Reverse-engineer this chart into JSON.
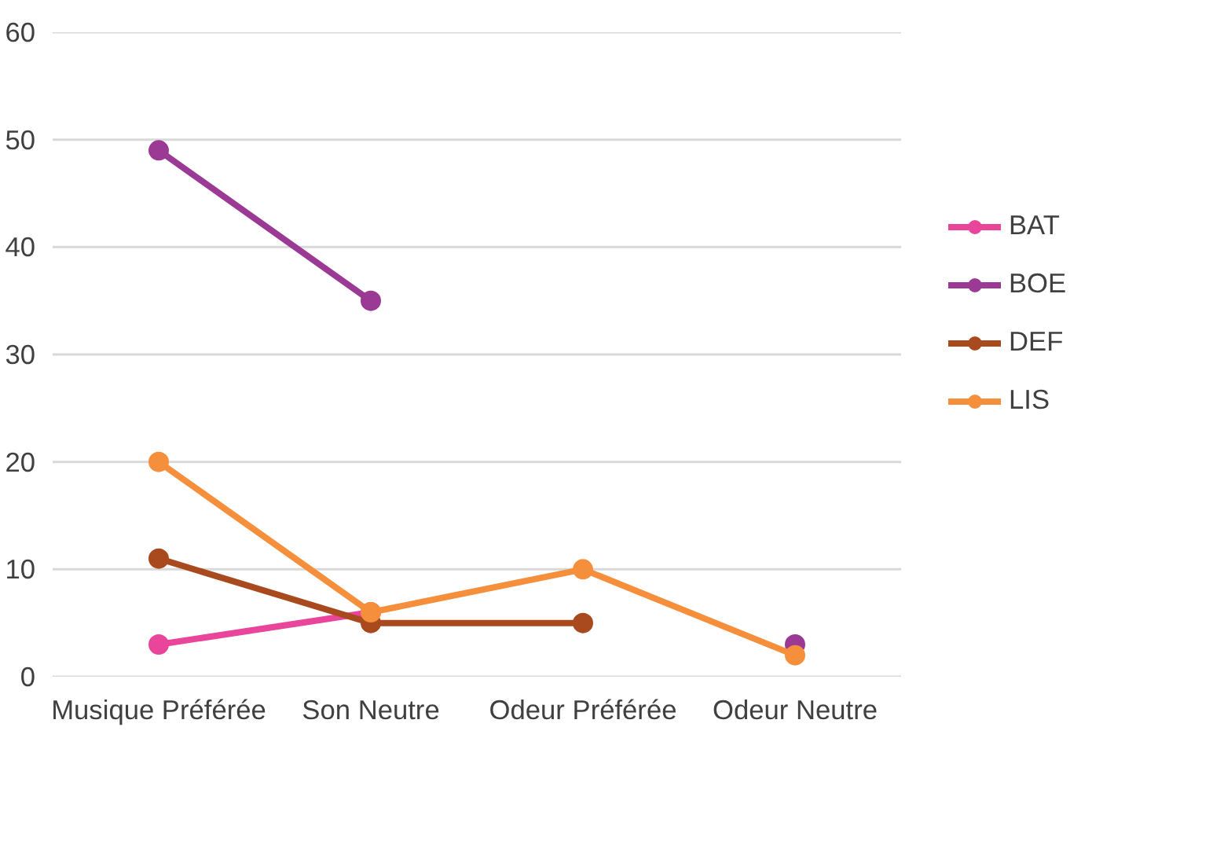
{
  "chart_data": {
    "type": "line",
    "categories": [
      "Musique Préférée",
      "Son Neutre",
      "Odeur Préférée",
      "Odeur Neutre"
    ],
    "series": [
      {
        "name": "BAT",
        "color": "#e8459b",
        "values": [
          3,
          6,
          null,
          null
        ]
      },
      {
        "name": "BOE",
        "color": "#9b3a94",
        "values": [
          49,
          35,
          null,
          3
        ]
      },
      {
        "name": "DEF",
        "color": "#a94a1e",
        "values": [
          11,
          5,
          5,
          null
        ]
      },
      {
        "name": "LIS",
        "color": "#f58f3c",
        "values": [
          20,
          6,
          10,
          2
        ]
      }
    ],
    "ylim": [
      0,
      60
    ],
    "yticks": [
      0,
      10,
      20,
      30,
      40,
      50,
      60
    ],
    "grid": "y",
    "legend": "right",
    "marker": "circle",
    "line_style": "solid"
  }
}
